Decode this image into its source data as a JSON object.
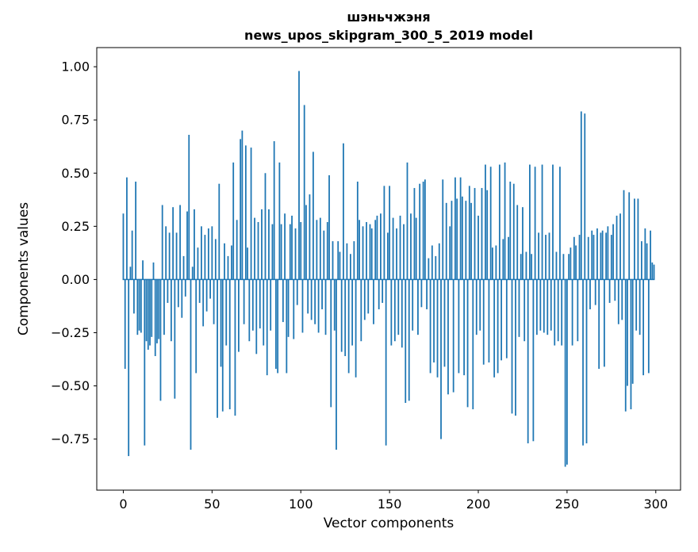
{
  "figure": {
    "background": "#ffffff"
  },
  "chart_data": {
    "type": "bar",
    "title": "шэньчжэня",
    "subtitle": "news_upos_skipgram_300_5_2019 model",
    "xlabel": "Vector components",
    "ylabel": "Components values",
    "bar_color": "#1f77b4",
    "n_components": 300,
    "xlim": [
      -14.95,
      313.95
    ],
    "ylim": [
      -0.99,
      1.09
    ],
    "grid": false,
    "legend": "none",
    "x_ticks": [
      0,
      50,
      100,
      150,
      200,
      250,
      300
    ],
    "x_tick_labels": [
      "0",
      "50",
      "100",
      "150",
      "200",
      "250",
      "300"
    ],
    "y_ticks": [
      1.0,
      0.75,
      0.5,
      0.25,
      0.0,
      -0.25,
      -0.5,
      -0.75
    ],
    "y_tick_labels": [
      "1.00",
      "0.75",
      "0.50",
      "0.25",
      "0.00",
      "−0.25",
      "−0.50",
      "−0.75"
    ],
    "values": [
      0.31,
      -0.42,
      0.48,
      -0.83,
      0.06,
      0.23,
      -0.16,
      0.46,
      -0.26,
      -0.24,
      -0.25,
      0.09,
      -0.78,
      -0.29,
      -0.33,
      -0.31,
      -0.27,
      0.08,
      -0.36,
      -0.3,
      -0.28,
      -0.57,
      0.35,
      -0.26,
      0.25,
      -0.11,
      0.22,
      -0.29,
      0.34,
      -0.56,
      0.22,
      -0.13,
      0.35,
      -0.18,
      0.11,
      -0.08,
      0.32,
      0.68,
      -0.8,
      0.06,
      0.33,
      -0.44,
      0.15,
      -0.11,
      0.25,
      -0.22,
      0.21,
      -0.15,
      0.24,
      -0.09,
      0.25,
      -0.21,
      0.19,
      -0.65,
      0.45,
      -0.41,
      -0.62,
      0.17,
      -0.31,
      0.11,
      -0.61,
      0.16,
      0.55,
      -0.64,
      0.28,
      -0.34,
      0.66,
      0.7,
      -0.21,
      0.63,
      0.15,
      -0.29,
      0.62,
      -0.24,
      0.29,
      -0.35,
      0.27,
      -0.23,
      0.33,
      -0.31,
      0.5,
      -0.45,
      0.33,
      -0.24,
      0.26,
      0.65,
      -0.42,
      -0.44,
      0.55,
      0.26,
      -0.2,
      0.31,
      -0.44,
      -0.27,
      0.26,
      0.3,
      -0.28,
      0.24,
      -0.12,
      0.98,
      0.27,
      -0.25,
      0.82,
      0.35,
      -0.16,
      0.4,
      -0.19,
      0.6,
      -0.21,
      0.28,
      -0.25,
      0.29,
      -0.14,
      0.23,
      -0.26,
      0.27,
      0.49,
      -0.6,
      0.18,
      -0.24,
      -0.8,
      0.18,
      0.13,
      -0.34,
      0.64,
      -0.36,
      0.17,
      -0.44,
      0.12,
      -0.31,
      0.18,
      -0.46,
      0.46,
      0.28,
      -0.29,
      0.25,
      -0.19,
      0.27,
      -0.16,
      0.26,
      0.24,
      -0.21,
      0.28,
      0.3,
      -0.14,
      0.31,
      -0.11,
      0.44,
      -0.78,
      0.22,
      0.44,
      -0.31,
      0.29,
      -0.29,
      0.24,
      -0.26,
      0.3,
      -0.32,
      0.26,
      -0.58,
      0.55,
      -0.57,
      0.31,
      -0.24,
      0.43,
      0.29,
      -0.26,
      0.45,
      -0.13,
      0.46,
      0.47,
      -0.14,
      0.1,
      -0.44,
      0.16,
      -0.39,
      0.11,
      -0.46,
      0.17,
      -0.75,
      0.47,
      -0.41,
      0.36,
      -0.54,
      0.25,
      0.37,
      -0.53,
      0.48,
      0.38,
      -0.44,
      0.48,
      0.39,
      -0.45,
      0.37,
      -0.6,
      0.44,
      0.36,
      -0.61,
      0.43,
      -0.26,
      0.3,
      -0.24,
      0.43,
      -0.4,
      0.54,
      0.42,
      -0.39,
      0.53,
      0.15,
      -0.46,
      0.16,
      -0.44,
      0.54,
      -0.38,
      0.19,
      0.55,
      -0.37,
      0.2,
      0.46,
      -0.63,
      0.45,
      -0.64,
      0.35,
      -0.27,
      0.12,
      0.34,
      -0.29,
      0.13,
      -0.77,
      0.54,
      0.12,
      -0.76,
      0.53,
      -0.26,
      0.22,
      -0.24,
      0.54,
      -0.25,
      0.21,
      -0.26,
      0.22,
      -0.24,
      0.54,
      -0.31,
      0.13,
      -0.29,
      0.53,
      -0.31,
      0.12,
      -0.88,
      -0.87,
      0.12,
      0.15,
      -0.31,
      0.2,
      0.16,
      -0.29,
      0.21,
      0.79,
      -0.78,
      0.78,
      -0.77,
      0.2,
      -0.14,
      0.23,
      0.21,
      -0.12,
      0.24,
      -0.42,
      0.22,
      0.23,
      -0.41,
      0.22,
      0.25,
      -0.11,
      0.21,
      0.26,
      -0.1,
      0.3,
      -0.21,
      0.31,
      -0.19,
      0.42,
      -0.62,
      -0.5,
      0.41,
      -0.61,
      -0.49,
      0.38,
      -0.24,
      0.38,
      -0.26,
      0.18,
      -0.45,
      0.24,
      0.17,
      -0.44,
      0.23,
      0.08,
      0.07
    ]
  }
}
